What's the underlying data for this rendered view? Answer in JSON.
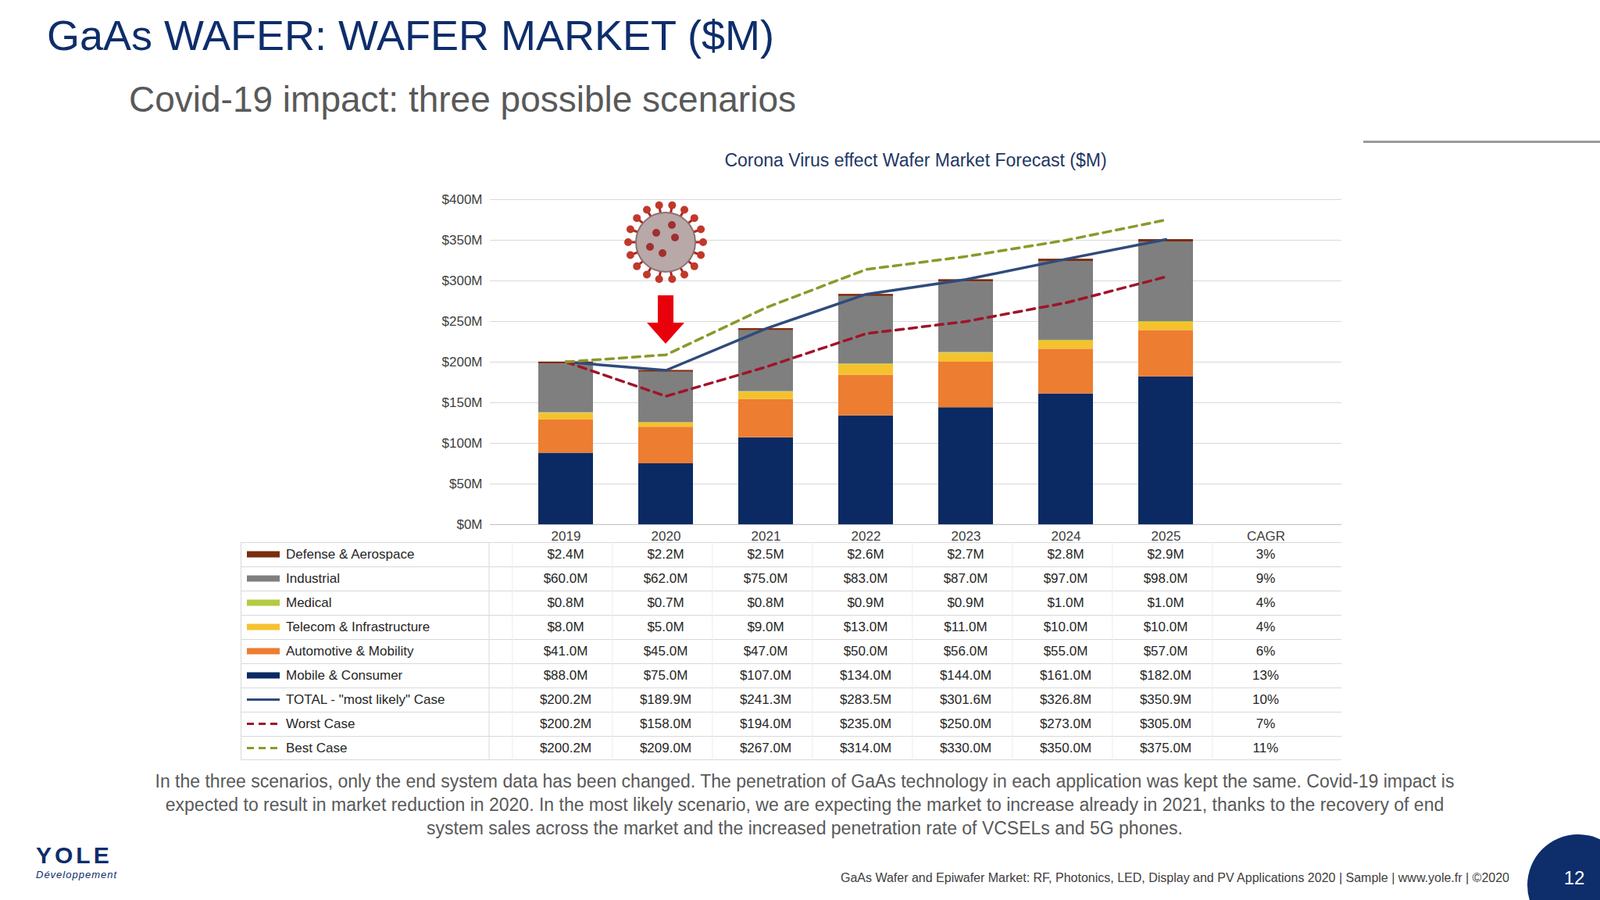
{
  "title": "GaAs WAFER: WAFER MARKET ($M)",
  "subtitle": "Covid-19 impact: three possible scenarios",
  "chart_data": {
    "type": "bar",
    "title": "Corona Virus effect Wafer Market Forecast ($M)",
    "categories": [
      "2019",
      "2020",
      "2021",
      "2022",
      "2023",
      "2024",
      "2025"
    ],
    "table_header": "CAGR",
    "highlight": "2020",
    "stacked": true,
    "grid": true,
    "legend": "left",
    "ylim": [
      0,
      400
    ],
    "yticks": [
      {
        "value": 0,
        "label": "$0M"
      },
      {
        "value": 50,
        "label": "$50M"
      },
      {
        "value": 100,
        "label": "$100M"
      },
      {
        "value": 150,
        "label": "$150M"
      },
      {
        "value": 200,
        "label": "$200M"
      },
      {
        "value": 250,
        "label": "$250M"
      },
      {
        "value": 300,
        "label": "$300M"
      },
      {
        "value": 350,
        "label": "$350M"
      },
      {
        "value": 400,
        "label": "$400M"
      }
    ],
    "series": [
      {
        "name": "Defense & Aerospace",
        "type": "bar",
        "color": "#7b2c0e",
        "values": [
          2.4,
          2.2,
          2.5,
          2.6,
          2.7,
          2.8,
          2.9
        ],
        "value_labels": [
          "$2.4M",
          "$2.2M",
          "$2.5M",
          "$2.6M",
          "$2.7M",
          "$2.8M",
          "$2.9M"
        ],
        "cagr": "3%"
      },
      {
        "name": "Industrial",
        "type": "bar",
        "color": "#7f7f7f",
        "values": [
          60,
          62,
          75,
          83,
          87,
          97,
          98
        ],
        "value_labels": [
          "$60.0M",
          "$62.0M",
          "$75.0M",
          "$83.0M",
          "$87.0M",
          "$97.0M",
          "$98.0M"
        ],
        "cagr": "9%"
      },
      {
        "name": "Medical",
        "type": "bar",
        "color": "#b5c942",
        "values": [
          0.8,
          0.7,
          0.8,
          0.9,
          0.9,
          1.0,
          1.0
        ],
        "value_labels": [
          "$0.8M",
          "$0.7M",
          "$0.8M",
          "$0.9M",
          "$0.9M",
          "$1.0M",
          "$1.0M"
        ],
        "cagr": "4%"
      },
      {
        "name": "Telecom & Infrastructure",
        "type": "bar",
        "color": "#f5c22e",
        "values": [
          8,
          5,
          9,
          13,
          11,
          10,
          10
        ],
        "value_labels": [
          "$8.0M",
          "$5.0M",
          "$9.0M",
          "$13.0M",
          "$11.0M",
          "$10.0M",
          "$10.0M"
        ],
        "cagr": "4%"
      },
      {
        "name": "Automotive & Mobility",
        "type": "bar",
        "color": "#ed7d31",
        "values": [
          41,
          45,
          47,
          50,
          56,
          55,
          57
        ],
        "value_labels": [
          "$41.0M",
          "$45.0M",
          "$47.0M",
          "$50.0M",
          "$56.0M",
          "$55.0M",
          "$57.0M"
        ],
        "cagr": "6%"
      },
      {
        "name": "Mobile & Consumer",
        "type": "bar",
        "color": "#0b2a63",
        "values": [
          88,
          75,
          107,
          134,
          144,
          161,
          182
        ],
        "value_labels": [
          "$88.0M",
          "$75.0M",
          "$107.0M",
          "$134.0M",
          "$144.0M",
          "$161.0M",
          "$182.0M"
        ],
        "cagr": "13%"
      },
      {
        "name": "TOTAL - \"most likely\" Case",
        "type": "line",
        "line_style": "solid",
        "color": "#2f4b7c",
        "values": [
          200.2,
          189.9,
          241.3,
          283.5,
          301.6,
          326.8,
          350.9
        ],
        "value_labels": [
          "$200.2M",
          "$189.9M",
          "$241.3M",
          "$283.5M",
          "$301.6M",
          "$326.8M",
          "$350.9M"
        ],
        "cagr": "10%"
      },
      {
        "name": "Worst Case",
        "type": "line",
        "line_style": "dashed",
        "color": "#a0142a",
        "values": [
          200.2,
          158,
          194,
          235,
          250,
          273,
          305
        ],
        "value_labels": [
          "$200.2M",
          "$158.0M",
          "$194.0M",
          "$235.0M",
          "$250.0M",
          "$273.0M",
          "$305.0M"
        ],
        "cagr": "7%"
      },
      {
        "name": "Best Case",
        "type": "line",
        "line_style": "dashed",
        "color": "#8a9a2a",
        "values": [
          200.2,
          209,
          267,
          314,
          330,
          350,
          375
        ],
        "value_labels": [
          "$200.2M",
          "$209.0M",
          "$267.0M",
          "$314.0M",
          "$330.0M",
          "$350.0M",
          "$375.0M"
        ],
        "cagr": "11%"
      }
    ]
  },
  "caption": "In the three scenarios, only the end system data has been changed. The penetration of GaAs technology in each application was kept the same. Covid-19 impact is expected to result in market reduction in 2020. In the most likely scenario, we are expecting the market to increase already in 2021, thanks to the recovery of end system sales across the market and the increased penetration rate of VCSELs and 5G phones.",
  "logo": {
    "name": "YOLE",
    "sub": "Développement"
  },
  "footer": "GaAs Wafer and Epiwafer Market: RF, Photonics, LED, Display and PV Applications 2020 | Sample | www.yole.fr | ©2020",
  "page_number": "12"
}
